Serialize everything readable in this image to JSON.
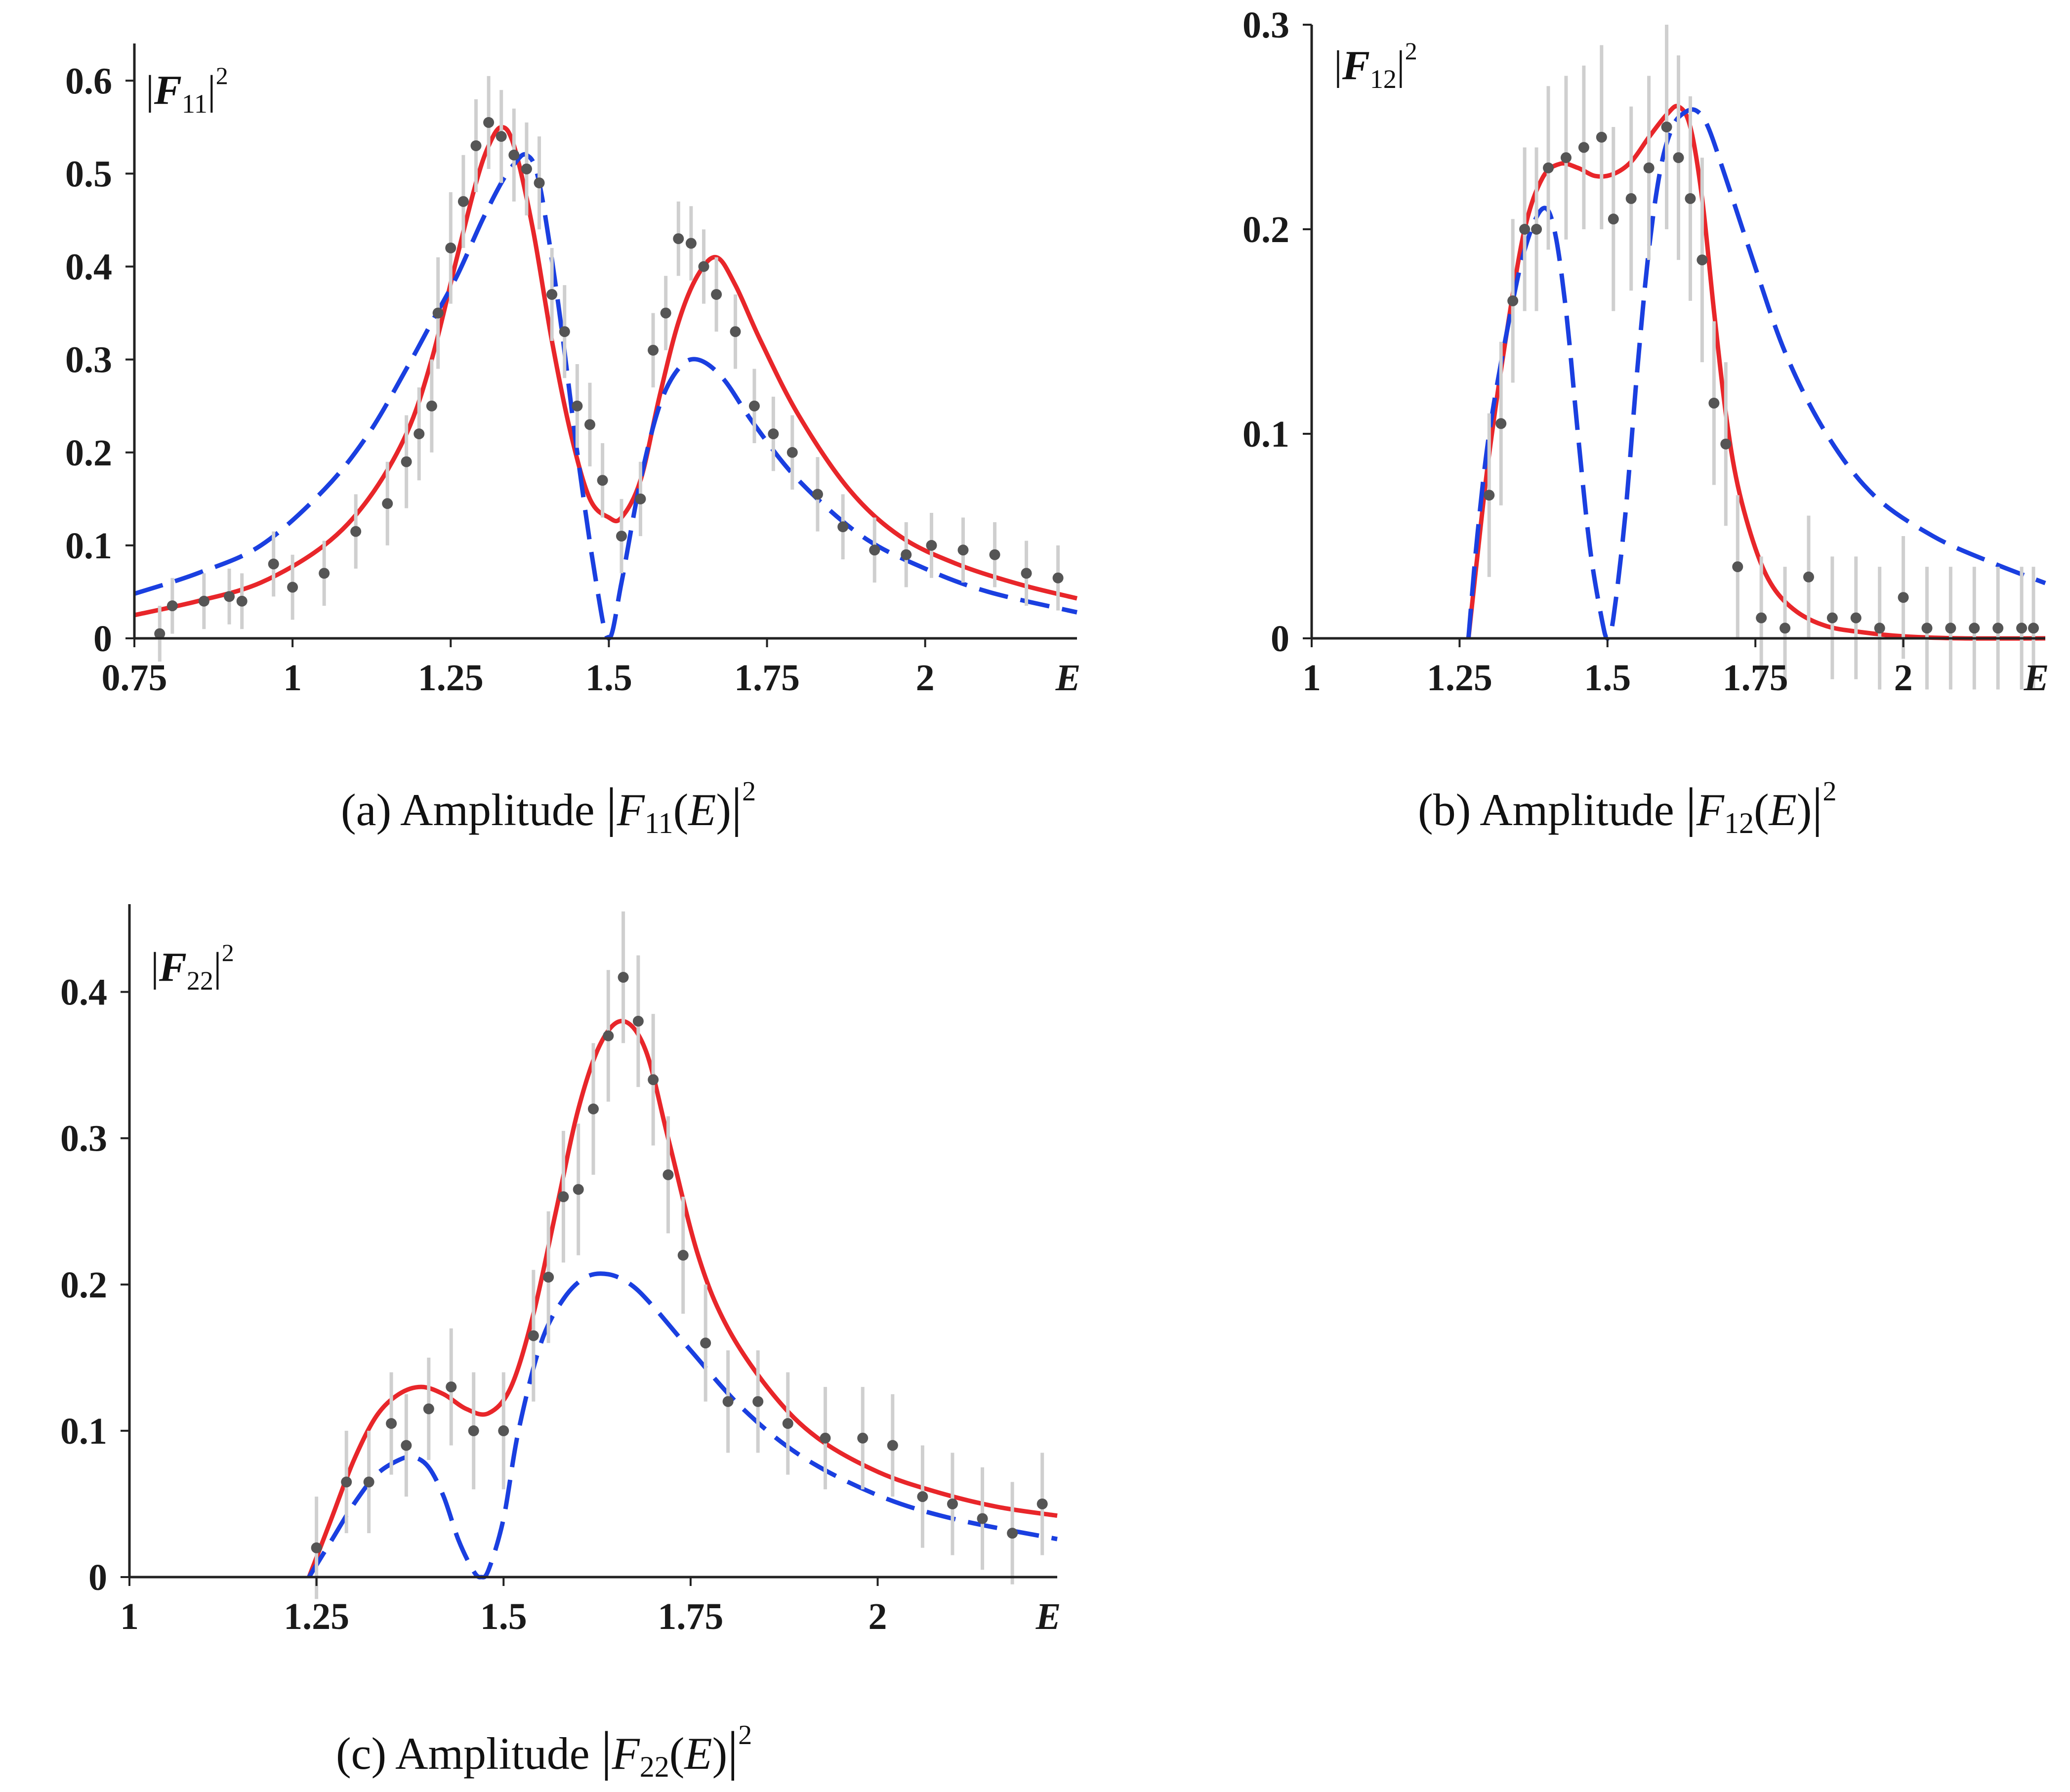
{
  "chart_data": [
    {
      "id": "a",
      "type": "line",
      "ylabel": {
        "main": "F",
        "sub": "11",
        "sup": "2"
      },
      "caption": {
        "prefix": "(a)  Amplitude ",
        "sub": "11",
        "sup": "2"
      },
      "xlabel": "E",
      "xlim": [
        0.75,
        2.24
      ],
      "ylim": [
        0,
        0.64
      ],
      "x_ticks": [
        0.75,
        1,
        1.25,
        1.5,
        1.75,
        2
      ],
      "x_tick_labels": [
        "0.75",
        "1",
        "1.25",
        "1.5",
        "1.75",
        "2"
      ],
      "y_ticks": [
        0,
        0.1,
        0.2,
        0.3,
        0.4,
        0.5,
        0.6
      ],
      "y_tick_labels": [
        "0",
        "0.1",
        "0.2",
        "0.3",
        "0.4",
        "0.5",
        "0.6"
      ],
      "series": [
        {
          "name": "fit-solid",
          "style": "solid",
          "color": "#e8262a",
          "x": [
            0.75,
            0.85,
            0.95,
            1.05,
            1.12,
            1.18,
            1.22,
            1.26,
            1.29,
            1.31,
            1.33,
            1.35,
            1.38,
            1.41,
            1.44,
            1.47,
            1.5,
            1.52,
            1.55,
            1.58,
            1.61,
            1.64,
            1.67,
            1.7,
            1.74,
            1.8,
            1.88,
            1.96,
            2.05,
            2.15,
            2.24
          ],
          "y": [
            0.025,
            0.04,
            0.06,
            0.1,
            0.15,
            0.22,
            0.3,
            0.41,
            0.49,
            0.53,
            0.55,
            0.53,
            0.44,
            0.32,
            0.22,
            0.15,
            0.13,
            0.13,
            0.17,
            0.26,
            0.34,
            0.39,
            0.41,
            0.38,
            0.32,
            0.24,
            0.16,
            0.11,
            0.08,
            0.058,
            0.043
          ]
        },
        {
          "name": "fit-dashed",
          "style": "dashed",
          "color": "#1a3fe0",
          "x": [
            0.75,
            0.85,
            0.95,
            1.05,
            1.12,
            1.18,
            1.22,
            1.26,
            1.3,
            1.33,
            1.35,
            1.37,
            1.39,
            1.42,
            1.45,
            1.48,
            1.5,
            1.52,
            1.55,
            1.58,
            1.61,
            1.64,
            1.68,
            1.73,
            1.8,
            1.9,
            2.0,
            2.1,
            2.24
          ],
          "y": [
            0.048,
            0.07,
            0.1,
            0.16,
            0.22,
            0.29,
            0.34,
            0.39,
            0.45,
            0.49,
            0.51,
            0.52,
            0.49,
            0.36,
            0.2,
            0.06,
            0.0,
            0.06,
            0.17,
            0.25,
            0.29,
            0.3,
            0.28,
            0.23,
            0.17,
            0.11,
            0.075,
            0.05,
            0.028
          ]
        },
        {
          "name": "data-points",
          "style": "points",
          "color": "#555555",
          "x": [
            0.79,
            0.81,
            0.86,
            0.9,
            0.92,
            0.97,
            1.0,
            1.05,
            1.1,
            1.15,
            1.18,
            1.2,
            1.22,
            1.23,
            1.25,
            1.27,
            1.29,
            1.31,
            1.33,
            1.35,
            1.37,
            1.39,
            1.41,
            1.43,
            1.45,
            1.47,
            1.49,
            1.52,
            1.55,
            1.57,
            1.59,
            1.61,
            1.63,
            1.65,
            1.67,
            1.7,
            1.73,
            1.76,
            1.79,
            1.83,
            1.87,
            1.92,
            1.97,
            2.01,
            2.06,
            2.11,
            2.16,
            2.21
          ],
          "y": [
            0.005,
            0.035,
            0.04,
            0.045,
            0.04,
            0.08,
            0.055,
            0.07,
            0.115,
            0.145,
            0.19,
            0.22,
            0.25,
            0.35,
            0.42,
            0.47,
            0.53,
            0.555,
            0.54,
            0.52,
            0.505,
            0.49,
            0.37,
            0.33,
            0.25,
            0.23,
            0.17,
            0.11,
            0.15,
            0.31,
            0.35,
            0.43,
            0.425,
            0.4,
            0.37,
            0.33,
            0.25,
            0.22,
            0.2,
            0.155,
            0.12,
            0.095,
            0.09,
            0.1,
            0.095,
            0.09,
            0.07,
            0.065
          ],
          "err": [
            0.03,
            0.03,
            0.03,
            0.03,
            0.03,
            0.035,
            0.035,
            0.035,
            0.04,
            0.045,
            0.05,
            0.05,
            0.05,
            0.06,
            0.06,
            0.05,
            0.05,
            0.05,
            0.05,
            0.05,
            0.05,
            0.05,
            0.05,
            0.05,
            0.045,
            0.045,
            0.04,
            0.04,
            0.04,
            0.04,
            0.04,
            0.04,
            0.04,
            0.04,
            0.04,
            0.04,
            0.04,
            0.04,
            0.04,
            0.04,
            0.035,
            0.035,
            0.035,
            0.035,
            0.035,
            0.035,
            0.035,
            0.035
          ]
        }
      ]
    },
    {
      "id": "b",
      "type": "line",
      "ylabel": {
        "main": "F",
        "sub": "12",
        "sup": "2"
      },
      "caption": {
        "prefix": "(b)  Amplitude ",
        "sub": "12",
        "sup": "2"
      },
      "xlabel": "E",
      "xlim": [
        1.0,
        2.24
      ],
      "ylim": [
        0,
        0.3
      ],
      "x_ticks": [
        1,
        1.25,
        1.5,
        1.75,
        2
      ],
      "x_tick_labels": [
        "1",
        "1.25",
        "1.5",
        "1.75",
        "2"
      ],
      "y_ticks": [
        0,
        0.1,
        0.2,
        0.3
      ],
      "y_tick_labels": [
        "0",
        "0.1",
        "0.2",
        "0.3"
      ],
      "series": [
        {
          "name": "fit-solid",
          "style": "solid",
          "color": "#e8262a",
          "x": [
            1.265,
            1.28,
            1.3,
            1.33,
            1.36,
            1.39,
            1.42,
            1.45,
            1.48,
            1.51,
            1.54,
            1.57,
            1.6,
            1.62,
            1.64,
            1.66,
            1.68,
            1.7,
            1.72,
            1.75,
            1.78,
            1.82,
            1.87,
            1.93,
            2.0,
            2.1,
            2.24
          ],
          "y": [
            0.0,
            0.04,
            0.09,
            0.15,
            0.2,
            0.225,
            0.232,
            0.23,
            0.226,
            0.227,
            0.233,
            0.245,
            0.256,
            0.26,
            0.25,
            0.215,
            0.16,
            0.11,
            0.075,
            0.044,
            0.025,
            0.013,
            0.006,
            0.003,
            0.001,
            0.0,
            0.0
          ]
        },
        {
          "name": "fit-dashed",
          "style": "dashed",
          "color": "#1a3fe0",
          "x": [
            1.265,
            1.28,
            1.3,
            1.33,
            1.36,
            1.39,
            1.41,
            1.43,
            1.45,
            1.47,
            1.49,
            1.5,
            1.51,
            1.53,
            1.55,
            1.57,
            1.59,
            1.61,
            1.63,
            1.65,
            1.67,
            1.7,
            1.74,
            1.8,
            1.87,
            1.95,
            2.05,
            2.15,
            2.24
          ],
          "y": [
            0.0,
            0.05,
            0.1,
            0.15,
            0.19,
            0.21,
            0.2,
            0.16,
            0.1,
            0.045,
            0.01,
            0.0,
            0.01,
            0.06,
            0.13,
            0.19,
            0.23,
            0.25,
            0.257,
            0.258,
            0.25,
            0.225,
            0.19,
            0.14,
            0.1,
            0.07,
            0.05,
            0.037,
            0.027
          ]
        },
        {
          "name": "data-points",
          "style": "points",
          "color": "#555555",
          "x": [
            1.3,
            1.32,
            1.34,
            1.36,
            1.38,
            1.4,
            1.43,
            1.46,
            1.49,
            1.51,
            1.54,
            1.57,
            1.6,
            1.62,
            1.64,
            1.66,
            1.68,
            1.7,
            1.72,
            1.76,
            1.8,
            1.84,
            1.88,
            1.92,
            1.96,
            2.0,
            2.04,
            2.08,
            2.12,
            2.16,
            2.2,
            2.22
          ],
          "y": [
            0.07,
            0.105,
            0.165,
            0.2,
            0.2,
            0.23,
            0.235,
            0.24,
            0.245,
            0.205,
            0.215,
            0.23,
            0.25,
            0.235,
            0.215,
            0.185,
            0.115,
            0.095,
            0.035,
            0.01,
            0.005,
            0.03,
            0.01,
            0.01,
            0.005,
            0.02,
            0.005,
            0.005,
            0.005,
            0.005,
            0.005,
            0.005
          ],
          "err": [
            0.04,
            0.04,
            0.04,
            0.04,
            0.04,
            0.04,
            0.04,
            0.04,
            0.045,
            0.045,
            0.045,
            0.045,
            0.05,
            0.05,
            0.05,
            0.05,
            0.04,
            0.04,
            0.035,
            0.03,
            0.03,
            0.03,
            0.03,
            0.03,
            0.03,
            0.03,
            0.03,
            0.03,
            0.03,
            0.03,
            0.03,
            0.03
          ]
        }
      ]
    },
    {
      "id": "c",
      "type": "line",
      "ylabel": {
        "main": "F",
        "sub": "22",
        "sup": "2"
      },
      "caption": {
        "prefix": "(c)  Amplitude ",
        "sub": "22",
        "sup": "2"
      },
      "xlabel": "E",
      "xlim": [
        1.0,
        2.24
      ],
      "ylim": [
        0,
        0.46
      ],
      "x_ticks": [
        1,
        1.25,
        1.5,
        1.75,
        2
      ],
      "x_tick_labels": [
        "1",
        "1.25",
        "1.5",
        "1.75",
        "2"
      ],
      "y_ticks": [
        0,
        0.1,
        0.2,
        0.3,
        0.4
      ],
      "y_tick_labels": [
        "0",
        "0.1",
        "0.2",
        "0.3",
        "0.4"
      ],
      "series": [
        {
          "name": "fit-solid",
          "style": "solid",
          "color": "#e8262a",
          "x": [
            1.24,
            1.27,
            1.3,
            1.33,
            1.36,
            1.39,
            1.42,
            1.45,
            1.48,
            1.51,
            1.54,
            1.57,
            1.6,
            1.63,
            1.66,
            1.69,
            1.72,
            1.76,
            1.8,
            1.86,
            1.92,
            2.0,
            2.08,
            2.16,
            2.24
          ],
          "y": [
            0.0,
            0.04,
            0.08,
            0.11,
            0.125,
            0.13,
            0.125,
            0.115,
            0.112,
            0.13,
            0.18,
            0.25,
            0.32,
            0.365,
            0.38,
            0.36,
            0.3,
            0.22,
            0.17,
            0.125,
            0.095,
            0.072,
            0.058,
            0.048,
            0.042
          ]
        },
        {
          "name": "fit-dashed",
          "style": "dashed",
          "color": "#1a3fe0",
          "x": [
            1.24,
            1.27,
            1.3,
            1.33,
            1.36,
            1.38,
            1.4,
            1.42,
            1.44,
            1.46,
            1.47,
            1.48,
            1.5,
            1.52,
            1.55,
            1.58,
            1.61,
            1.64,
            1.67,
            1.7,
            1.75,
            1.82,
            1.9,
            2.0,
            2.1,
            2.24
          ],
          "y": [
            0.0,
            0.025,
            0.05,
            0.07,
            0.08,
            0.082,
            0.075,
            0.055,
            0.025,
            0.004,
            0.0,
            0.005,
            0.04,
            0.1,
            0.16,
            0.19,
            0.205,
            0.207,
            0.2,
            0.185,
            0.155,
            0.115,
            0.082,
            0.056,
            0.04,
            0.026
          ]
        },
        {
          "name": "data-points",
          "style": "points",
          "color": "#555555",
          "x": [
            1.25,
            1.29,
            1.32,
            1.35,
            1.37,
            1.4,
            1.43,
            1.46,
            1.5,
            1.54,
            1.56,
            1.58,
            1.6,
            1.62,
            1.64,
            1.66,
            1.68,
            1.7,
            1.72,
            1.74,
            1.77,
            1.8,
            1.84,
            1.88,
            1.93,
            1.98,
            2.02,
            2.06,
            2.1,
            2.14,
            2.18,
            2.22
          ],
          "y": [
            0.02,
            0.065,
            0.065,
            0.105,
            0.09,
            0.115,
            0.13,
            0.1,
            0.1,
            0.165,
            0.205,
            0.26,
            0.265,
            0.32,
            0.37,
            0.41,
            0.38,
            0.34,
            0.275,
            0.22,
            0.16,
            0.12,
            0.12,
            0.105,
            0.095,
            0.095,
            0.09,
            0.055,
            0.05,
            0.04,
            0.03,
            0.05
          ],
          "err": [
            0.035,
            0.035,
            0.035,
            0.035,
            0.035,
            0.035,
            0.04,
            0.04,
            0.04,
            0.045,
            0.045,
            0.045,
            0.045,
            0.045,
            0.045,
            0.045,
            0.045,
            0.045,
            0.04,
            0.04,
            0.04,
            0.035,
            0.035,
            0.035,
            0.035,
            0.035,
            0.035,
            0.035,
            0.035,
            0.035,
            0.035,
            0.035
          ]
        }
      ]
    }
  ]
}
